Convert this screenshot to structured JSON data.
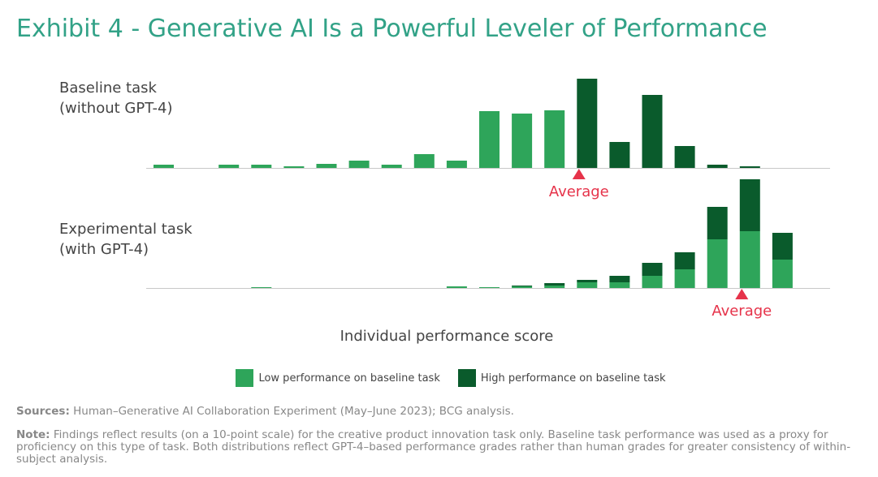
{
  "title": "Exhibit 4 - Generative AI Is a Powerful Leveler of Performance",
  "panels": {
    "baseline": {
      "line1": "Baseline task",
      "line2": "(without GPT-4)"
    },
    "experimental": {
      "line1": "Experimental task",
      "line2": "(with GPT-4)"
    }
  },
  "average_label": "Average",
  "xlabel": "Individual performance score",
  "legend": {
    "low": "Low performance on baseline task",
    "high": "High performance on baseline task"
  },
  "colors": {
    "low": "#2ea55a",
    "high": "#0a5b2c",
    "average": "#e6334a",
    "title": "#32a287"
  },
  "footer": {
    "sources_label": "Sources:",
    "sources_text": " Human–Generative AI Collaboration Experiment (May–June 2023); BCG analysis.",
    "note_label": "Note:",
    "note_text": " Findings reflect results (on a 10-point scale) for the creative product innovation task only. Baseline task performance was used as a proxy for proficiency on this type of task. Both distributions reflect GPT-4–based performance grades rather than human grades for greater consistency of within-subject analysis."
  },
  "chart_data": [
    {
      "type": "bar",
      "panel": "Baseline task (without GPT-4)",
      "bins": 20,
      "series": [
        {
          "name": "Low performance on baseline task",
          "values": [
            4,
            0,
            4,
            4,
            2,
            5,
            9,
            4,
            17,
            9,
            70,
            67,
            71,
            0,
            0,
            0,
            0,
            0,
            0,
            0
          ]
        },
        {
          "name": "High performance on baseline task",
          "values": [
            0,
            0,
            0,
            0,
            0,
            0,
            0,
            0,
            0,
            0,
            0,
            0,
            0,
            110,
            32,
            90,
            27,
            4,
            2,
            0
          ]
        }
      ],
      "average_bin": 12.75
    },
    {
      "type": "bar",
      "stacked": true,
      "panel": "Experimental task (with GPT-4)",
      "bins": 20,
      "series": [
        {
          "name": "Low performance on baseline task",
          "values": [
            0,
            0,
            0,
            1,
            0,
            0,
            0,
            0,
            0,
            2,
            1,
            2,
            3,
            7,
            7,
            15,
            23,
            60,
            70,
            35
          ]
        },
        {
          "name": "High performance on baseline task",
          "values": [
            0,
            0,
            0,
            0,
            0,
            0,
            0,
            0,
            0,
            0,
            0,
            1,
            3,
            3,
            8,
            16,
            21,
            40,
            64,
            33
          ]
        }
      ],
      "average_bin": 17.75
    }
  ]
}
